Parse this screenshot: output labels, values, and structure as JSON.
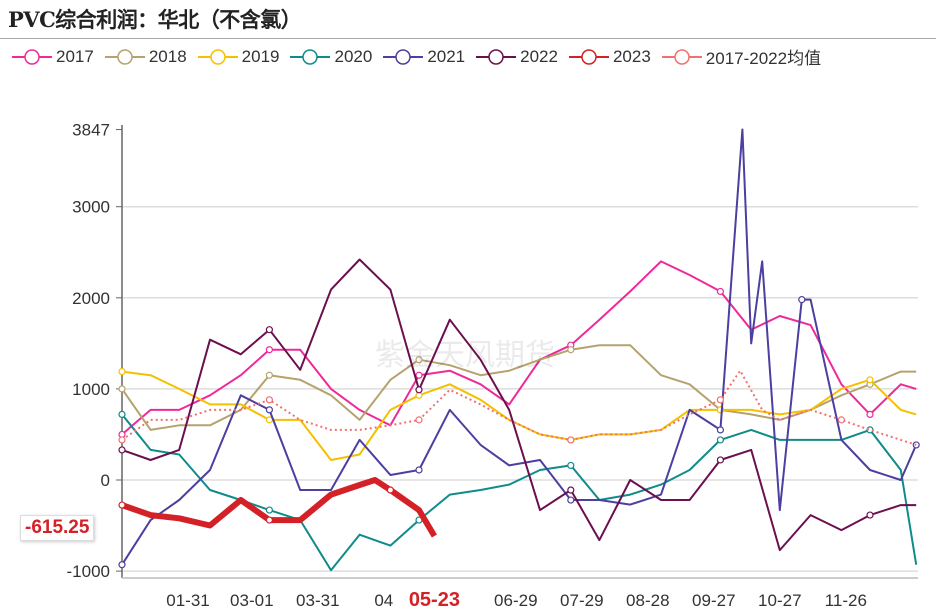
{
  "title": "PVC综合利润：华北（不含氯）",
  "watermark": "紫金天风期货",
  "last_value_label": "-615.25",
  "chart_data": {
    "type": "line",
    "title": "PVC综合利润：华北（不含氯）",
    "xlabel": "",
    "ylabel": "",
    "ylim": [
      -1000,
      3847
    ],
    "yticks": [
      "3847",
      "3000",
      "2000",
      "1000",
      "0",
      "-1000"
    ],
    "ytick_values": [
      3847,
      3000,
      2000,
      1000,
      0,
      -1000
    ],
    "xticks": [
      "01-31",
      "03-01",
      "03-31",
      "04",
      "05-23",
      "06-29",
      "07-29",
      "08-28",
      "09-27",
      "10-27",
      "11-26"
    ],
    "xtick_dates": [
      "01-31",
      "03-01",
      "03-31",
      "04-30",
      "05-23",
      "06-29",
      "07-29",
      "08-28",
      "09-27",
      "10-27",
      "11-26"
    ],
    "highlight_xtick": "05-23",
    "grid": true,
    "legend_position": "top",
    "series": [
      {
        "name": "2017",
        "color": "#ee2a9b",
        "style": "solid",
        "points": [
          [
            "01-01",
            500
          ],
          [
            "01-14",
            770
          ],
          [
            "01-27",
            770
          ],
          [
            "02-10",
            930
          ],
          [
            "02-24",
            1150
          ],
          [
            "03-09",
            1430
          ],
          [
            "03-23",
            1430
          ],
          [
            "04-06",
            1000
          ],
          [
            "04-19",
            770
          ],
          [
            "05-03",
            600
          ],
          [
            "05-16",
            1150
          ],
          [
            "05-30",
            1200
          ],
          [
            "06-13",
            1050
          ],
          [
            "06-26",
            830
          ],
          [
            "07-10",
            1320
          ],
          [
            "07-24",
            1480
          ],
          [
            "08-06",
            1760
          ],
          [
            "08-20",
            2070
          ],
          [
            "09-03",
            2400
          ],
          [
            "09-16",
            2250
          ],
          [
            "09-30",
            2070
          ],
          [
            "10-14",
            1650
          ],
          [
            "10-27",
            1800
          ],
          [
            "11-10",
            1700
          ],
          [
            "11-24",
            1050
          ],
          [
            "12-07",
            720
          ],
          [
            "12-21",
            1050
          ],
          [
            "12-28",
            1000
          ]
        ]
      },
      {
        "name": "2018",
        "color": "#b5a26e",
        "style": "solid",
        "points": [
          [
            "01-01",
            1000
          ],
          [
            "01-14",
            550
          ],
          [
            "01-27",
            600
          ],
          [
            "02-10",
            600
          ],
          [
            "02-24",
            770
          ],
          [
            "03-09",
            1150
          ],
          [
            "03-23",
            1100
          ],
          [
            "04-06",
            930
          ],
          [
            "04-19",
            660
          ],
          [
            "05-03",
            1100
          ],
          [
            "05-16",
            1320
          ],
          [
            "05-30",
            1260
          ],
          [
            "06-13",
            1150
          ],
          [
            "06-26",
            1200
          ],
          [
            "07-10",
            1320
          ],
          [
            "07-24",
            1430
          ],
          [
            "08-06",
            1480
          ],
          [
            "08-20",
            1480
          ],
          [
            "09-03",
            1150
          ],
          [
            "09-16",
            1050
          ],
          [
            "09-30",
            770
          ],
          [
            "10-14",
            720
          ],
          [
            "10-27",
            660
          ],
          [
            "11-10",
            770
          ],
          [
            "11-24",
            930
          ],
          [
            "12-07",
            1050
          ],
          [
            "12-21",
            1190
          ],
          [
            "12-28",
            1190
          ]
        ]
      },
      {
        "name": "2019",
        "color": "#f5c000",
        "style": "solid",
        "points": [
          [
            "01-01",
            1190
          ],
          [
            "01-14",
            1150
          ],
          [
            "01-27",
            1000
          ],
          [
            "02-10",
            830
          ],
          [
            "02-24",
            830
          ],
          [
            "03-09",
            660
          ],
          [
            "03-23",
            660
          ],
          [
            "04-06",
            220
          ],
          [
            "04-19",
            280
          ],
          [
            "05-03",
            770
          ],
          [
            "05-16",
            930
          ],
          [
            "05-30",
            1050
          ],
          [
            "06-13",
            880
          ],
          [
            "06-26",
            660
          ],
          [
            "07-10",
            500
          ],
          [
            "07-24",
            440
          ],
          [
            "08-06",
            500
          ],
          [
            "08-20",
            500
          ],
          [
            "09-03",
            550
          ],
          [
            "09-16",
            770
          ],
          [
            "09-30",
            770
          ],
          [
            "10-14",
            770
          ],
          [
            "10-27",
            720
          ],
          [
            "11-10",
            770
          ],
          [
            "11-24",
            1000
          ],
          [
            "12-07",
            1100
          ],
          [
            "12-21",
            770
          ],
          [
            "12-28",
            720
          ]
        ]
      },
      {
        "name": "2020",
        "color": "#108b8b",
        "style": "solid",
        "points": [
          [
            "01-01",
            720
          ],
          [
            "01-14",
            330
          ],
          [
            "01-27",
            280
          ],
          [
            "02-10",
            -110
          ],
          [
            "02-24",
            -220
          ],
          [
            "03-09",
            -330
          ],
          [
            "03-23",
            -440
          ],
          [
            "04-06",
            -990
          ],
          [
            "04-19",
            -600
          ],
          [
            "05-03",
            -720
          ],
          [
            "05-16",
            -440
          ],
          [
            "05-30",
            -160
          ],
          [
            "06-13",
            -110
          ],
          [
            "06-26",
            -50
          ],
          [
            "07-10",
            110
          ],
          [
            "07-24",
            160
          ],
          [
            "08-06",
            -220
          ],
          [
            "08-20",
            -160
          ],
          [
            "09-03",
            -50
          ],
          [
            "09-16",
            110
          ],
          [
            "09-30",
            440
          ],
          [
            "10-14",
            550
          ],
          [
            "10-27",
            440
          ],
          [
            "11-10",
            440
          ],
          [
            "11-24",
            440
          ],
          [
            "12-07",
            550
          ],
          [
            "12-21",
            110
          ],
          [
            "12-28",
            -930
          ]
        ]
      },
      {
        "name": "2021",
        "color": "#4b3fa0",
        "style": "solid",
        "points": [
          [
            "01-01",
            -930
          ],
          [
            "01-14",
            -440
          ],
          [
            "01-27",
            -220
          ],
          [
            "02-10",
            110
          ],
          [
            "02-24",
            930
          ],
          [
            "03-09",
            770
          ],
          [
            "03-23",
            -110
          ],
          [
            "04-06",
            -110
          ],
          [
            "04-19",
            440
          ],
          [
            "05-03",
            55
          ],
          [
            "05-16",
            110
          ],
          [
            "05-30",
            770
          ],
          [
            "06-13",
            385
          ],
          [
            "06-26",
            160
          ],
          [
            "07-10",
            220
          ],
          [
            "07-24",
            -220
          ],
          [
            "08-06",
            -220
          ],
          [
            "08-20",
            -270
          ],
          [
            "09-03",
            -160
          ],
          [
            "09-16",
            770
          ],
          [
            "09-30",
            550
          ],
          [
            "10-10",
            3847
          ],
          [
            "10-14",
            1500
          ],
          [
            "10-19",
            2400
          ],
          [
            "10-27",
            -330
          ],
          [
            "11-06",
            1980
          ],
          [
            "11-10",
            1980
          ],
          [
            "11-24",
            440
          ],
          [
            "12-07",
            110
          ],
          [
            "12-21",
            0
          ],
          [
            "12-28",
            385
          ]
        ]
      },
      {
        "name": "2022",
        "color": "#6b0f4e",
        "style": "solid",
        "points": [
          [
            "01-01",
            330
          ],
          [
            "01-14",
            220
          ],
          [
            "01-27",
            330
          ],
          [
            "02-10",
            1540
          ],
          [
            "02-24",
            1380
          ],
          [
            "03-09",
            1650
          ],
          [
            "03-23",
            1210
          ],
          [
            "04-06",
            2090
          ],
          [
            "04-19",
            2420
          ],
          [
            "05-03",
            2090
          ],
          [
            "05-16",
            990
          ],
          [
            "05-30",
            1760
          ],
          [
            "06-13",
            1320
          ],
          [
            "06-26",
            770
          ],
          [
            "07-10",
            -330
          ],
          [
            "07-24",
            -110
          ],
          [
            "08-06",
            -660
          ],
          [
            "08-20",
            0
          ],
          [
            "09-03",
            -220
          ],
          [
            "09-16",
            -220
          ],
          [
            "09-30",
            220
          ],
          [
            "10-14",
            330
          ],
          [
            "10-27",
            -770
          ],
          [
            "11-10",
            -385
          ],
          [
            "11-24",
            -550
          ],
          [
            "12-07",
            -385
          ],
          [
            "12-21",
            -275
          ],
          [
            "12-28",
            -275
          ]
        ]
      },
      {
        "name": "2023",
        "color": "#d42027",
        "style": "thick",
        "points": [
          [
            "01-01",
            -275
          ],
          [
            "01-14",
            -385
          ],
          [
            "01-27",
            -420
          ],
          [
            "02-10",
            -500
          ],
          [
            "02-24",
            -220
          ],
          [
            "03-09",
            -440
          ],
          [
            "03-23",
            -440
          ],
          [
            "04-06",
            -160
          ],
          [
            "04-19",
            -55
          ],
          [
            "04-26",
            0
          ],
          [
            "05-03",
            -110
          ],
          [
            "05-16",
            -330
          ],
          [
            "05-23",
            -615.25
          ]
        ]
      },
      {
        "name": "2017-2022均值",
        "color": "#f07070",
        "style": "dotted",
        "points": [
          [
            "01-01",
            440
          ],
          [
            "01-14",
            660
          ],
          [
            "01-27",
            660
          ],
          [
            "02-10",
            770
          ],
          [
            "02-24",
            770
          ],
          [
            "03-09",
            880
          ],
          [
            "03-23",
            660
          ],
          [
            "04-06",
            550
          ],
          [
            "04-19",
            550
          ],
          [
            "05-03",
            600
          ],
          [
            "05-16",
            660
          ],
          [
            "05-30",
            990
          ],
          [
            "06-13",
            830
          ],
          [
            "06-26",
            660
          ],
          [
            "07-10",
            500
          ],
          [
            "07-24",
            440
          ],
          [
            "08-06",
            500
          ],
          [
            "08-20",
            500
          ],
          [
            "09-03",
            550
          ],
          [
            "09-16",
            720
          ],
          [
            "09-30",
            880
          ],
          [
            "10-09",
            1200
          ],
          [
            "10-19",
            770
          ],
          [
            "10-27",
            660
          ],
          [
            "11-10",
            770
          ],
          [
            "11-24",
            660
          ],
          [
            "12-07",
            550
          ],
          [
            "12-21",
            440
          ],
          [
            "12-28",
            385
          ]
        ]
      }
    ]
  }
}
